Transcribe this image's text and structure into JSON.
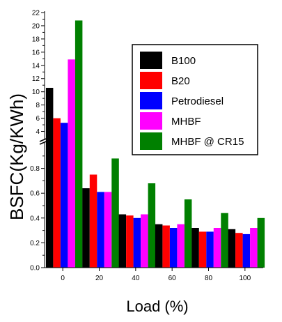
{
  "chart_data": {
    "type": "bar",
    "xlabel": "Load (%)",
    "ylabel": "BSFC(Kg/KWh)",
    "categories": [
      "0",
      "20",
      "40",
      "60",
      "80",
      "100"
    ],
    "legend_position": "top-right",
    "series": [
      {
        "name": "B100",
        "color": "#000000",
        "values": [
          10.6,
          0.64,
          0.43,
          0.35,
          0.32,
          0.31
        ]
      },
      {
        "name": "B20",
        "color": "#ff0000",
        "values": [
          6.0,
          0.75,
          0.42,
          0.34,
          0.29,
          0.28
        ]
      },
      {
        "name": "Petrodiesel",
        "color": "#0000ff",
        "values": [
          5.3,
          0.61,
          0.4,
          0.32,
          0.29,
          0.27
        ]
      },
      {
        "name": "MHBF",
        "color": "#ff00ff",
        "values": [
          14.9,
          0.61,
          0.43,
          0.35,
          0.32,
          0.32
        ]
      },
      {
        "name": "MHBF @ CR15",
        "color": "#008000",
        "values": [
          20.8,
          0.88,
          0.68,
          0.55,
          0.44,
          0.4
        ]
      }
    ],
    "y_axis_lower": {
      "range": [
        0.0,
        1.0
      ],
      "ticks": [
        "0.0",
        "0.2",
        "0.4",
        "0.6",
        "0.8"
      ]
    },
    "y_axis_upper": {
      "range": [
        3,
        22
      ],
      "ticks": [
        "4",
        "6",
        "8",
        "10",
        "12",
        "14",
        "16",
        "18",
        "20",
        "22"
      ]
    },
    "axis_break": true,
    "grid": false
  }
}
